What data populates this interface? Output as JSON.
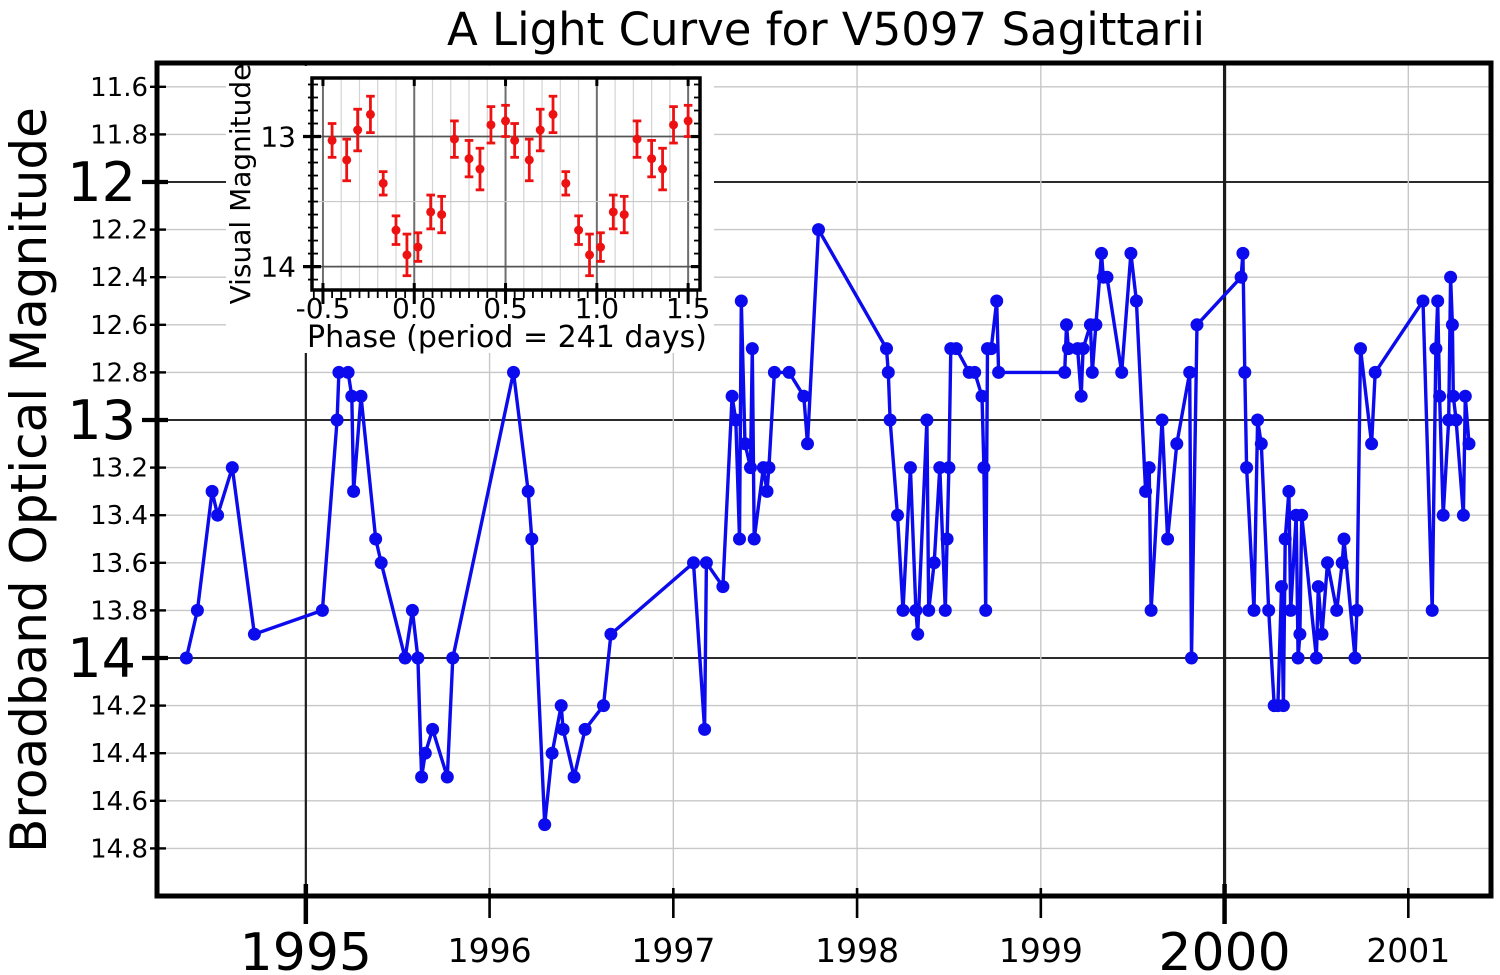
{
  "figure": {
    "background": "#ffffff",
    "accent_blue": "#0b0bee",
    "accent_red": "#ee1111"
  },
  "chart_data": [
    {
      "id": "main-light-curve",
      "type": "line",
      "title": "A Light Curve for V5097 Sagittarii",
      "title_color": "#0b0bee",
      "xlabel": "",
      "ylabel": "Broadband Optical Magnitude",
      "xlim": [
        1994.19,
        2001.45
      ],
      "ylim": [
        11.5,
        15.0
      ],
      "y_axis_inverted_magnitude": true,
      "grid": true,
      "legend": "none",
      "color": "#0b0bee",
      "x_ticks": [
        {
          "v": 1995,
          "label": "1995",
          "major": true
        },
        {
          "v": 1996,
          "label": "1996",
          "major": false
        },
        {
          "v": 1997,
          "label": "1997",
          "major": false
        },
        {
          "v": 1998,
          "label": "1998",
          "major": false
        },
        {
          "v": 1999,
          "label": "1999",
          "major": false
        },
        {
          "v": 2000,
          "label": "2000",
          "major": true
        },
        {
          "v": 2001,
          "label": "2001",
          "major": false
        }
      ],
      "y_ticks": [
        {
          "v": 11.6,
          "label": "11.6",
          "major": false
        },
        {
          "v": 11.8,
          "label": "11.8",
          "major": false
        },
        {
          "v": 12.0,
          "label": "12",
          "major": true
        },
        {
          "v": 12.2,
          "label": "12.2",
          "major": false
        },
        {
          "v": 12.4,
          "label": "12.4",
          "major": false
        },
        {
          "v": 12.6,
          "label": "12.6",
          "major": false
        },
        {
          "v": 12.8,
          "label": "12.8",
          "major": false
        },
        {
          "v": 13.0,
          "label": "13",
          "major": true
        },
        {
          "v": 13.2,
          "label": "13.2",
          "major": false
        },
        {
          "v": 13.4,
          "label": "13.4",
          "major": false
        },
        {
          "v": 13.6,
          "label": "13.6",
          "major": false
        },
        {
          "v": 13.8,
          "label": "13.8",
          "major": false
        },
        {
          "v": 14.0,
          "label": "14",
          "major": true
        },
        {
          "v": 14.2,
          "label": "14.2",
          "major": false
        },
        {
          "v": 14.4,
          "label": "14.4",
          "major": false
        },
        {
          "v": 14.6,
          "label": "14.6",
          "major": false
        },
        {
          "v": 14.8,
          "label": "14.8",
          "major": false
        }
      ],
      "points": [
        [
          1994.35,
          14.0
        ],
        [
          1994.41,
          13.8
        ],
        [
          1994.49,
          13.3
        ],
        [
          1994.52,
          13.4
        ],
        [
          1994.6,
          13.2
        ],
        [
          1994.72,
          13.9
        ],
        [
          1995.09,
          13.8
        ],
        [
          1995.17,
          13.0
        ],
        [
          1995.18,
          12.8
        ],
        [
          1995.23,
          12.8
        ],
        [
          1995.25,
          12.9
        ],
        [
          1995.26,
          13.3
        ],
        [
          1995.3,
          12.9
        ],
        [
          1995.38,
          13.5
        ],
        [
          1995.41,
          13.6
        ],
        [
          1995.54,
          14.0
        ],
        [
          1995.58,
          13.8
        ],
        [
          1995.61,
          14.0
        ],
        [
          1995.63,
          14.5
        ],
        [
          1995.65,
          14.4
        ],
        [
          1995.69,
          14.3
        ],
        [
          1995.77,
          14.5
        ],
        [
          1995.8,
          14.0
        ],
        [
          1996.13,
          12.8
        ],
        [
          1996.21,
          13.3
        ],
        [
          1996.23,
          13.5
        ],
        [
          1996.3,
          14.7
        ],
        [
          1996.34,
          14.4
        ],
        [
          1996.39,
          14.2
        ],
        [
          1996.4,
          14.3
        ],
        [
          1996.46,
          14.5
        ],
        [
          1996.52,
          14.3
        ],
        [
          1996.62,
          14.2
        ],
        [
          1996.66,
          13.9
        ],
        [
          1997.11,
          13.6
        ],
        [
          1997.17,
          14.3
        ],
        [
          1997.18,
          13.6
        ],
        [
          1997.27,
          13.7
        ],
        [
          1997.32,
          12.9
        ],
        [
          1997.34,
          13.0
        ],
        [
          1997.36,
          13.5
        ],
        [
          1997.37,
          12.5
        ],
        [
          1997.39,
          13.1
        ],
        [
          1997.42,
          13.2
        ],
        [
          1997.43,
          12.7
        ],
        [
          1997.44,
          13.5
        ],
        [
          1997.49,
          13.2
        ],
        [
          1997.51,
          13.3
        ],
        [
          1997.52,
          13.2
        ],
        [
          1997.55,
          12.8
        ],
        [
          1997.63,
          12.8
        ],
        [
          1997.71,
          12.9
        ],
        [
          1997.73,
          13.1
        ],
        [
          1997.79,
          12.2
        ],
        [
          1998.16,
          12.7
        ],
        [
          1998.17,
          12.8
        ],
        [
          1998.18,
          13.0
        ],
        [
          1998.22,
          13.4
        ],
        [
          1998.25,
          13.8
        ],
        [
          1998.29,
          13.2
        ],
        [
          1998.32,
          13.8
        ],
        [
          1998.33,
          13.9
        ],
        [
          1998.38,
          13.0
        ],
        [
          1998.39,
          13.8
        ],
        [
          1998.42,
          13.6
        ],
        [
          1998.45,
          13.2
        ],
        [
          1998.48,
          13.8
        ],
        [
          1998.49,
          13.5
        ],
        [
          1998.5,
          13.2
        ],
        [
          1998.51,
          12.7
        ],
        [
          1998.54,
          12.7
        ],
        [
          1998.61,
          12.8
        ],
        [
          1998.64,
          12.8
        ],
        [
          1998.68,
          12.9
        ],
        [
          1998.69,
          13.2
        ],
        [
          1998.7,
          13.8
        ],
        [
          1998.71,
          12.7
        ],
        [
          1998.73,
          12.7
        ],
        [
          1998.76,
          12.5
        ],
        [
          1998.77,
          12.8
        ],
        [
          1999.13,
          12.8
        ],
        [
          1999.14,
          12.6
        ],
        [
          1999.15,
          12.7
        ],
        [
          1999.2,
          12.7
        ],
        [
          1999.22,
          12.9
        ],
        [
          1999.23,
          12.7
        ],
        [
          1999.27,
          12.6
        ],
        [
          1999.28,
          12.8
        ],
        [
          1999.3,
          12.6
        ],
        [
          1999.33,
          12.3
        ],
        [
          1999.34,
          12.4
        ],
        [
          1999.36,
          12.4
        ],
        [
          1999.44,
          12.8
        ],
        [
          1999.49,
          12.3
        ],
        [
          1999.52,
          12.5
        ],
        [
          1999.57,
          13.3
        ],
        [
          1999.59,
          13.2
        ],
        [
          1999.6,
          13.8
        ],
        [
          1999.66,
          13.0
        ],
        [
          1999.69,
          13.5
        ],
        [
          1999.74,
          13.1
        ],
        [
          1999.81,
          12.8
        ],
        [
          1999.82,
          14.0
        ],
        [
          1999.85,
          12.6
        ],
        [
          2000.09,
          12.4
        ],
        [
          2000.1,
          12.3
        ],
        [
          2000.11,
          12.8
        ],
        [
          2000.12,
          13.2
        ],
        [
          2000.16,
          13.8
        ],
        [
          2000.18,
          13.0
        ],
        [
          2000.2,
          13.1
        ],
        [
          2000.24,
          13.8
        ],
        [
          2000.27,
          14.2
        ],
        [
          2000.29,
          14.2
        ],
        [
          2000.31,
          13.7
        ],
        [
          2000.32,
          14.2
        ],
        [
          2000.33,
          13.5
        ],
        [
          2000.35,
          13.3
        ],
        [
          2000.36,
          13.8
        ],
        [
          2000.39,
          13.4
        ],
        [
          2000.4,
          14.0
        ],
        [
          2000.41,
          13.9
        ],
        [
          2000.42,
          13.4
        ],
        [
          2000.5,
          14.0
        ],
        [
          2000.51,
          13.7
        ],
        [
          2000.53,
          13.9
        ],
        [
          2000.56,
          13.6
        ],
        [
          2000.61,
          13.8
        ],
        [
          2000.64,
          13.6
        ],
        [
          2000.65,
          13.5
        ],
        [
          2000.71,
          14.0
        ],
        [
          2000.72,
          13.8
        ],
        [
          2000.74,
          12.7
        ],
        [
          2000.8,
          13.1
        ],
        [
          2000.82,
          12.8
        ],
        [
          2001.08,
          12.5
        ],
        [
          2001.13,
          13.8
        ],
        [
          2001.15,
          12.7
        ],
        [
          2001.16,
          12.5
        ],
        [
          2001.17,
          12.9
        ],
        [
          2001.19,
          13.4
        ],
        [
          2001.22,
          13.0
        ],
        [
          2001.23,
          12.4
        ],
        [
          2001.24,
          12.6
        ],
        [
          2001.245,
          12.9
        ],
        [
          2001.26,
          13.0
        ],
        [
          2001.3,
          13.4
        ],
        [
          2001.31,
          12.9
        ],
        [
          2001.33,
          13.1
        ]
      ]
    },
    {
      "id": "inset-phased-curve",
      "type": "scatter",
      "error_bars": true,
      "xlabel": "Phase (period = 241 days)",
      "ylabel": "Visual Magnitude",
      "xlim": [
        -0.56,
        1.565
      ],
      "ylim": [
        12.55,
        14.18
      ],
      "y_axis_inverted_magnitude": true,
      "color": "#ee1111",
      "x_ticks": [
        {
          "v": -0.5,
          "label": "-0.5",
          "major": true
        },
        {
          "v": 0.0,
          "label": "0.0",
          "major": true
        },
        {
          "v": 0.5,
          "label": "0.5",
          "major": true
        },
        {
          "v": 1.0,
          "label": "1.0",
          "major": true
        },
        {
          "v": 1.5,
          "label": "1.5",
          "major": true
        }
      ],
      "y_ticks": [
        {
          "v": 13.0,
          "label": "13",
          "major": true
        },
        {
          "v": 13.5,
          "label": "",
          "major": false
        },
        {
          "v": 14.0,
          "label": "14",
          "major": true
        }
      ],
      "x_minor_grid_step": 0.1,
      "x_minor_tick_step": 0.05,
      "y_minor_tick_step": 0.1,
      "points": [
        [
          -0.45,
          13.03,
          0.13
        ],
        [
          -0.37,
          13.18,
          0.16
        ],
        [
          -0.31,
          12.95,
          0.16
        ],
        [
          -0.24,
          12.83,
          0.14
        ],
        [
          -0.17,
          13.36,
          0.09
        ],
        [
          -0.1,
          13.72,
          0.11
        ],
        [
          -0.04,
          13.91,
          0.16
        ],
        [
          0.02,
          13.85,
          0.11
        ],
        [
          0.09,
          13.58,
          0.13
        ],
        [
          0.15,
          13.6,
          0.14
        ],
        [
          0.22,
          13.02,
          0.14
        ],
        [
          0.3,
          13.17,
          0.14
        ],
        [
          0.36,
          13.25,
          0.16
        ],
        [
          0.42,
          12.91,
          0.14
        ],
        [
          0.5,
          12.88,
          0.12
        ],
        [
          0.55,
          13.03,
          0.13
        ],
        [
          0.63,
          13.18,
          0.16
        ],
        [
          0.69,
          12.95,
          0.16
        ],
        [
          0.76,
          12.83,
          0.14
        ],
        [
          0.83,
          13.36,
          0.09
        ],
        [
          0.9,
          13.72,
          0.11
        ],
        [
          0.96,
          13.91,
          0.16
        ],
        [
          1.02,
          13.85,
          0.11
        ],
        [
          1.09,
          13.58,
          0.13
        ],
        [
          1.15,
          13.6,
          0.14
        ],
        [
          1.22,
          13.02,
          0.14
        ],
        [
          1.3,
          13.17,
          0.14
        ],
        [
          1.36,
          13.25,
          0.16
        ],
        [
          1.42,
          12.91,
          0.14
        ],
        [
          1.5,
          12.88,
          0.12
        ]
      ]
    }
  ]
}
